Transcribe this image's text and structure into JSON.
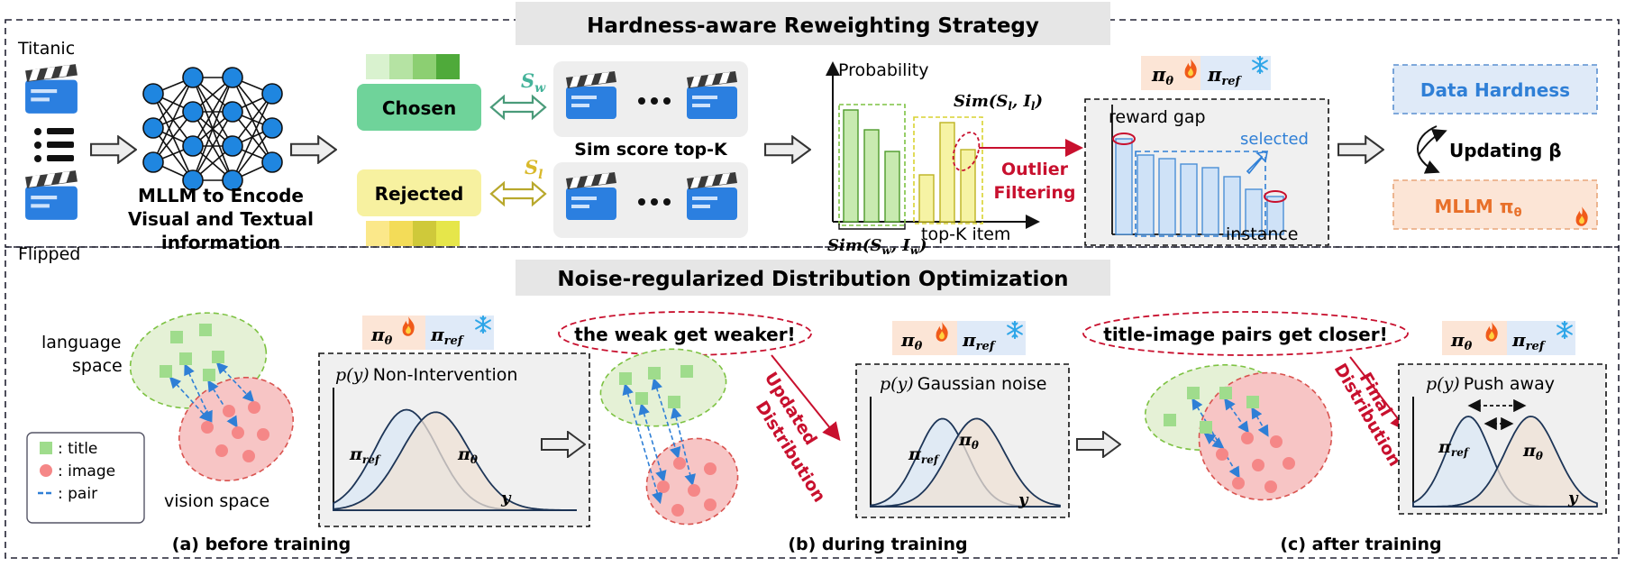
{
  "top": {
    "title": "Hardness-aware Reweighting Strategy",
    "input_titanic": "Titanic",
    "input_flipped": "Flipped",
    "mllm_lines": [
      "MLLM to Encode",
      "Visual and Textual",
      "information"
    ],
    "chosen": "Chosen",
    "rejected": "Rejected",
    "s_w": "S",
    "s_w_sub": "w",
    "s_l": "S",
    "s_l_sub": "l",
    "sim_score": "Sim score top-K",
    "probability": "Probability",
    "top_k_item": "top-K item",
    "sim_sw_iw": "Sim(S",
    "sim_sw_iw_tail": "w",
    "sim_sw_iw_close": ", I",
    "sim_sw_iw_sub2": "w",
    "sim_sl_il": "Sim(S",
    "sim_sl_il_sub1": "l",
    "sim_sl_il_close": ", I",
    "sim_sl_il_sub2": "l",
    "outlier_line1": "Outlier",
    "outlier_line2": "Filtering",
    "pi_theta": "π",
    "pi_theta_sub": "θ",
    "pi_ref": "π",
    "pi_ref_sub": "ref",
    "reward_gap": "reward gap",
    "selected": "selected",
    "instance": "instance",
    "data_hardness": "Data Hardness",
    "updating_beta": "Updating β",
    "mllm_pi": "MLLM π",
    "mllm_pi_sub": "θ"
  },
  "bottom": {
    "title": "Noise-regularized Distribution Optimization",
    "language_space_1": "language",
    "language_space_2": "space",
    "vision_space": "vision space",
    "legend": [
      "title",
      "image",
      "pair"
    ],
    "legend_prefix": ": ",
    "panel_a": {
      "plot_label": "Non-Intervention",
      "caption": "(a) before training"
    },
    "panel_b": {
      "callout": "the weak get weaker!",
      "side_1": "Updated",
      "side_2": "Distribution",
      "plot_label": "Gaussian noise",
      "caption": "(b) during training"
    },
    "panel_c": {
      "callout": "title-image pairs get closer!",
      "side_1": "Final",
      "side_2": "Distribution",
      "plot_label": "Push away",
      "caption": "(c) after training"
    },
    "py": "p(y)",
    "y": "y",
    "pi_ref": "π",
    "pi_ref_sub": "ref",
    "pi_theta": "π",
    "pi_theta_sub": "θ"
  },
  "colors": {
    "chosen_fill": "#6fd39a",
    "rejected_fill": "#f7f1a0",
    "green_cells": [
      "#d9f2cf",
      "#b5e3a3",
      "#8ccf72",
      "#4faa3a"
    ],
    "yellow_cells": [
      "#fbe88a",
      "#f3dc58",
      "#cfc93a",
      "#e6e64a"
    ],
    "blue": "#1f86e0",
    "red": "#c8102e",
    "orange": "#e8702a",
    "green_dash": "#7dc242",
    "title_bar": "#e6e6e6"
  }
}
